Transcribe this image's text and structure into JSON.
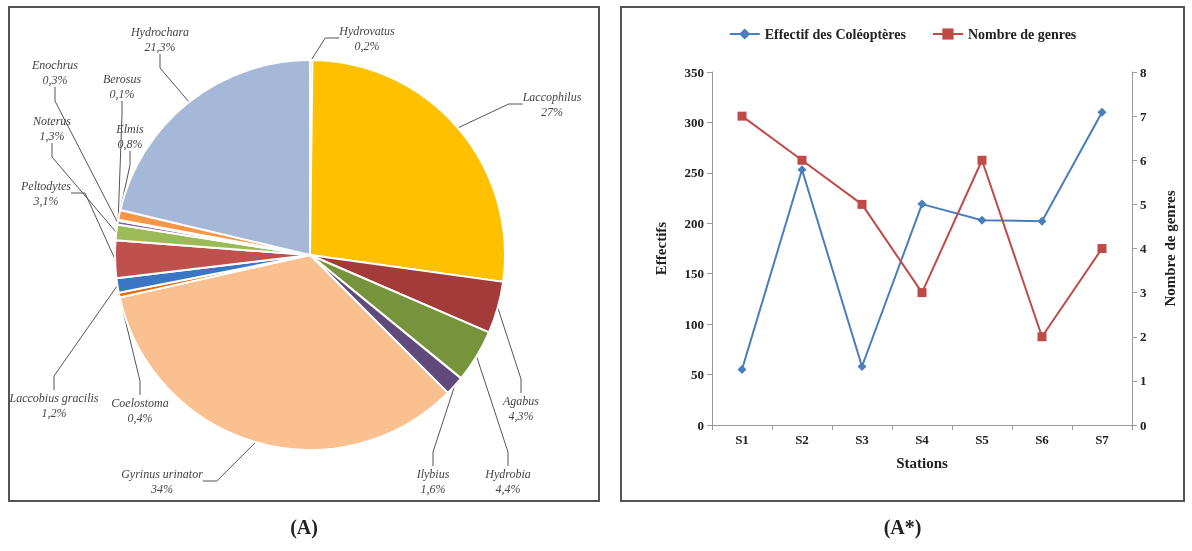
{
  "chart_data": [
    {
      "type": "pie",
      "title": "(A)",
      "categories": [
        "Hydrovatus",
        "Laccophilus",
        "Agabus",
        "Hydrobia",
        "Ilybius",
        "Gyrinus urinator",
        "Coelostoma",
        "Laccobius gracilis",
        "Peltodytes",
        "Noterus",
        "Enochrus",
        "Berosus",
        "Elmis",
        "Hydrochara"
      ],
      "values": [
        0.2,
        27,
        4.3,
        4.4,
        1.6,
        34,
        0.4,
        1.2,
        3.1,
        1.3,
        0.3,
        0.1,
        0.8,
        21.3
      ],
      "value_labels": [
        "0,2%",
        "27%",
        "4,3%",
        "4,4%",
        "1,6%",
        "34%",
        "0,4%",
        "1,2%",
        "3,1%",
        "1,3%",
        "0,3%",
        "0,1%",
        "0,8%",
        "21,3%"
      ],
      "colors": [
        "#7f7fbf",
        "#ffc000",
        "#a33b3b",
        "#77933c",
        "#604a7b",
        "#fac090",
        "#e46c0a",
        "#3b76c4",
        "#c0504d",
        "#9bbb59",
        "#8064a2",
        "#e6a0c4",
        "#f79646",
        "#a5b8d8"
      ]
    },
    {
      "type": "line",
      "title": "(A*)",
      "xlabel": "Stations",
      "ylabel": "Effectifs",
      "y2label": "Nombre de genres",
      "categories": [
        "S1",
        "S2",
        "S3",
        "S4",
        "S5",
        "S6",
        "S7"
      ],
      "series": [
        {
          "name": "Effectif des Coléoptères",
          "color": "#4a7ebb",
          "marker": "diamond",
          "values": [
            55,
            253,
            58,
            219,
            203,
            202,
            310
          ]
        },
        {
          "name": "Nombre de genres",
          "color": "#be4b48",
          "marker": "square",
          "axis": "y2",
          "values": [
            7,
            6,
            5,
            3,
            6,
            2,
            4
          ]
        }
      ],
      "ylim": [
        0,
        350
      ],
      "yticks": [
        0,
        50,
        100,
        150,
        200,
        250,
        300,
        350
      ],
      "y2lim": [
        0,
        8
      ],
      "y2ticks": [
        0,
        1,
        2,
        3,
        4,
        5,
        6,
        7,
        8
      ],
      "grid": false,
      "legend": "top",
      "line_style": "solid"
    }
  ]
}
